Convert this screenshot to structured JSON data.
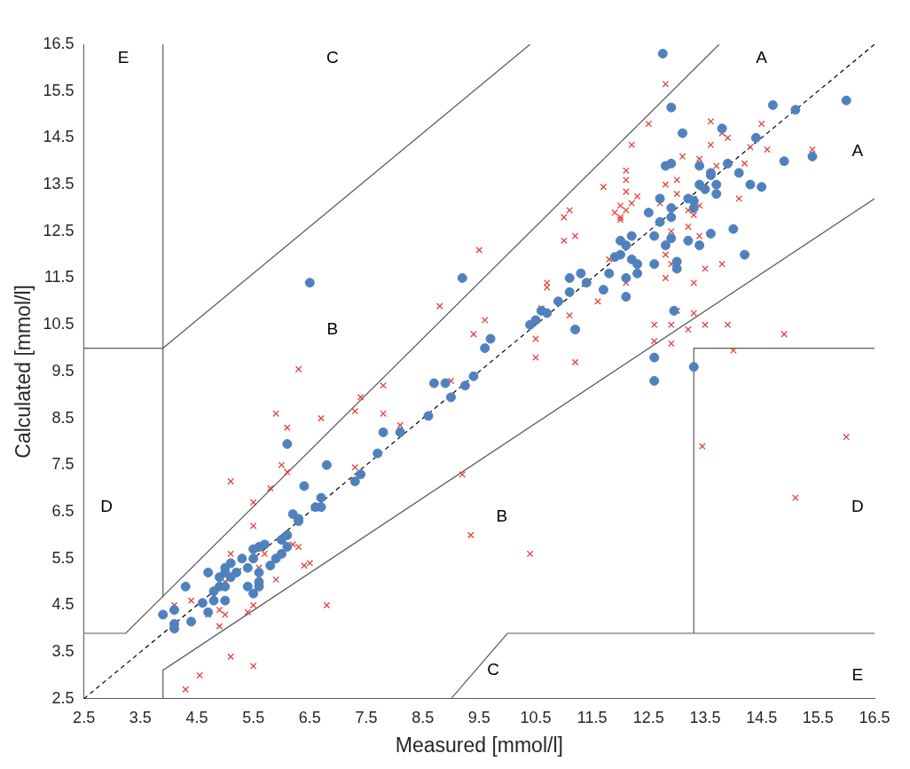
{
  "chart_data": {
    "type": "scatter",
    "x_label": "Measured [mmol/l]",
    "y_label": "Calculated [mmol/l]",
    "xlim": [
      2.5,
      16.5
    ],
    "ylim": [
      2.5,
      16.5
    ],
    "xticks": [
      2.5,
      3.5,
      4.5,
      5.5,
      6.5,
      7.5,
      8.5,
      9.5,
      10.5,
      11.5,
      12.5,
      13.5,
      14.5,
      15.5,
      16.5
    ],
    "yticks": [
      2.5,
      3.5,
      4.5,
      5.5,
      6.5,
      7.5,
      8.5,
      9.5,
      10.5,
      11.5,
      12.5,
      13.5,
      14.5,
      15.5,
      16.5
    ],
    "grid": false,
    "series": [
      {
        "color": "#4f81bd",
        "marker": "circle",
        "points": [
          [
            3.9,
            4.3
          ],
          [
            4.1,
            4.0
          ],
          [
            4.1,
            4.1
          ],
          [
            4.1,
            4.4
          ],
          [
            4.3,
            4.9
          ],
          [
            4.4,
            4.15
          ],
          [
            4.6,
            4.55
          ],
          [
            4.7,
            5.2
          ],
          [
            4.7,
            4.35
          ],
          [
            4.8,
            4.6
          ],
          [
            4.8,
            4.8
          ],
          [
            4.9,
            5.1
          ],
          [
            4.9,
            4.9
          ],
          [
            5.0,
            5.2
          ],
          [
            5.0,
            5.3
          ],
          [
            5.0,
            4.6
          ],
          [
            5.0,
            4.9
          ],
          [
            5.1,
            5.1
          ],
          [
            5.1,
            5.4
          ],
          [
            5.2,
            5.2
          ],
          [
            5.3,
            5.5
          ],
          [
            5.4,
            4.9
          ],
          [
            5.4,
            5.3
          ],
          [
            5.5,
            5.5
          ],
          [
            5.5,
            5.7
          ],
          [
            5.5,
            4.75
          ],
          [
            5.6,
            5.0
          ],
          [
            5.6,
            5.2
          ],
          [
            5.6,
            4.9
          ],
          [
            5.6,
            5.75
          ],
          [
            5.7,
            5.8
          ],
          [
            5.8,
            5.35
          ],
          [
            5.9,
            5.5
          ],
          [
            6.0,
            5.6
          ],
          [
            6.0,
            5.9
          ],
          [
            6.1,
            5.75
          ],
          [
            6.1,
            6.0
          ],
          [
            6.1,
            7.95
          ],
          [
            6.2,
            6.45
          ],
          [
            6.3,
            6.3
          ],
          [
            6.3,
            6.35
          ],
          [
            6.4,
            7.05
          ],
          [
            6.5,
            11.4
          ],
          [
            6.6,
            6.6
          ],
          [
            6.7,
            6.6
          ],
          [
            6.7,
            6.8
          ],
          [
            6.8,
            7.5
          ],
          [
            7.3,
            7.15
          ],
          [
            7.4,
            7.3
          ],
          [
            7.7,
            7.75
          ],
          [
            7.8,
            8.2
          ],
          [
            8.1,
            8.2
          ],
          [
            8.6,
            8.55
          ],
          [
            8.7,
            9.25
          ],
          [
            8.9,
            9.25
          ],
          [
            9.0,
            8.95
          ],
          [
            9.2,
            11.5
          ],
          [
            9.25,
            9.2
          ],
          [
            9.4,
            9.4
          ],
          [
            9.6,
            10.0
          ],
          [
            9.7,
            10.2
          ],
          [
            10.4,
            10.5
          ],
          [
            10.5,
            10.6
          ],
          [
            10.6,
            10.8
          ],
          [
            10.7,
            10.75
          ],
          [
            10.9,
            11.0
          ],
          [
            11.1,
            11.2
          ],
          [
            11.1,
            11.5
          ],
          [
            11.2,
            10.4
          ],
          [
            11.3,
            11.6
          ],
          [
            11.4,
            11.4
          ],
          [
            11.7,
            11.25
          ],
          [
            11.8,
            11.6
          ],
          [
            11.9,
            11.95
          ],
          [
            12.0,
            12.0
          ],
          [
            12.0,
            12.3
          ],
          [
            12.1,
            12.2
          ],
          [
            12.1,
            11.5
          ],
          [
            12.1,
            11.1
          ],
          [
            12.2,
            12.4
          ],
          [
            12.2,
            11.9
          ],
          [
            12.3,
            11.8
          ],
          [
            12.3,
            11.6
          ],
          [
            12.5,
            12.9
          ],
          [
            12.6,
            12.4
          ],
          [
            12.6,
            11.8
          ],
          [
            12.6,
            9.8
          ],
          [
            12.6,
            9.3
          ],
          [
            12.7,
            13.2
          ],
          [
            12.7,
            12.7
          ],
          [
            12.75,
            16.3
          ],
          [
            12.8,
            12.2
          ],
          [
            12.8,
            13.9
          ],
          [
            12.9,
            15.15
          ],
          [
            12.9,
            12.8
          ],
          [
            12.9,
            13.0
          ],
          [
            12.9,
            13.95
          ],
          [
            12.9,
            12.35
          ],
          [
            12.95,
            10.8
          ],
          [
            13.0,
            11.7
          ],
          [
            13.0,
            11.85
          ],
          [
            13.1,
            14.6
          ],
          [
            13.2,
            13.2
          ],
          [
            13.2,
            12.3
          ],
          [
            13.3,
            13.0
          ],
          [
            13.3,
            13.15
          ],
          [
            13.3,
            9.6
          ],
          [
            13.4,
            13.9
          ],
          [
            13.4,
            12.2
          ],
          [
            13.4,
            13.5
          ],
          [
            13.5,
            13.4
          ],
          [
            13.6,
            13.7
          ],
          [
            13.6,
            13.75
          ],
          [
            13.6,
            12.45
          ],
          [
            13.7,
            13.3
          ],
          [
            13.7,
            13.5
          ],
          [
            13.8,
            14.7
          ],
          [
            13.9,
            13.95
          ],
          [
            14.0,
            12.55
          ],
          [
            14.1,
            13.75
          ],
          [
            14.2,
            12.0
          ],
          [
            14.3,
            13.5
          ],
          [
            14.4,
            14.5
          ],
          [
            14.5,
            13.45
          ],
          [
            14.7,
            15.2
          ],
          [
            14.9,
            14.0
          ],
          [
            15.1,
            15.1
          ],
          [
            15.4,
            14.1
          ],
          [
            16.0,
            15.3
          ]
        ]
      },
      {
        "color": "#e8403a",
        "marker": "x",
        "points": [
          [
            3.9,
            4.3
          ],
          [
            4.1,
            4.4
          ],
          [
            4.1,
            4.5
          ],
          [
            4.3,
            2.7
          ],
          [
            4.4,
            4.6
          ],
          [
            4.55,
            3.0
          ],
          [
            4.7,
            4.3
          ],
          [
            4.8,
            4.7
          ],
          [
            4.9,
            4.4
          ],
          [
            4.9,
            4.05
          ],
          [
            5.0,
            5.0
          ],
          [
            5.0,
            4.3
          ],
          [
            5.1,
            7.15
          ],
          [
            5.1,
            3.4
          ],
          [
            5.1,
            5.6
          ],
          [
            5.3,
            5.5
          ],
          [
            5.4,
            4.35
          ],
          [
            5.5,
            4.5
          ],
          [
            5.5,
            6.7
          ],
          [
            5.5,
            6.2
          ],
          [
            5.5,
            3.2
          ],
          [
            5.6,
            5.1
          ],
          [
            5.6,
            5.3
          ],
          [
            5.7,
            5.6
          ],
          [
            5.8,
            7.0
          ],
          [
            5.9,
            5.05
          ],
          [
            5.9,
            8.6
          ],
          [
            6.0,
            7.5
          ],
          [
            6.1,
            8.3
          ],
          [
            6.1,
            7.35
          ],
          [
            6.1,
            6.0
          ],
          [
            6.2,
            5.8
          ],
          [
            6.3,
            9.55
          ],
          [
            6.3,
            5.75
          ],
          [
            6.4,
            5.35
          ],
          [
            6.5,
            5.4
          ],
          [
            6.7,
            8.5
          ],
          [
            6.7,
            6.7
          ],
          [
            6.8,
            4.5
          ],
          [
            7.3,
            7.45
          ],
          [
            7.3,
            8.65
          ],
          [
            7.4,
            8.95
          ],
          [
            7.8,
            8.6
          ],
          [
            7.8,
            9.2
          ],
          [
            8.1,
            8.35
          ],
          [
            8.8,
            10.9
          ],
          [
            9.0,
            9.3
          ],
          [
            9.2,
            7.3
          ],
          [
            9.35,
            6.0
          ],
          [
            9.4,
            10.3
          ],
          [
            9.5,
            12.1
          ],
          [
            9.6,
            10.6
          ],
          [
            10.4,
            5.6
          ],
          [
            10.5,
            9.8
          ],
          [
            10.5,
            10.2
          ],
          [
            10.6,
            10.85
          ],
          [
            10.7,
            11.3
          ],
          [
            10.7,
            11.4
          ],
          [
            11.0,
            12.3
          ],
          [
            11.0,
            12.8
          ],
          [
            11.1,
            12.95
          ],
          [
            11.1,
            10.7
          ],
          [
            11.2,
            12.4
          ],
          [
            11.2,
            9.7
          ],
          [
            11.6,
            11.0
          ],
          [
            11.7,
            13.45
          ],
          [
            11.8,
            11.9
          ],
          [
            11.9,
            12.9
          ],
          [
            12.0,
            13.05
          ],
          [
            12.0,
            12.8
          ],
          [
            12.0,
            12.75
          ],
          [
            12.1,
            13.8
          ],
          [
            12.1,
            13.6
          ],
          [
            12.1,
            13.35
          ],
          [
            12.1,
            12.95
          ],
          [
            12.1,
            11.4
          ],
          [
            12.2,
            14.35
          ],
          [
            12.2,
            13.1
          ],
          [
            12.3,
            13.25
          ],
          [
            12.5,
            14.8
          ],
          [
            12.6,
            10.15
          ],
          [
            12.6,
            10.5
          ],
          [
            12.7,
            13.1
          ],
          [
            12.8,
            15.65
          ],
          [
            12.8,
            11.5
          ],
          [
            12.8,
            12.0
          ],
          [
            12.8,
            13.5
          ],
          [
            12.9,
            10.1
          ],
          [
            12.9,
            10.5
          ],
          [
            12.9,
            11.8
          ],
          [
            12.9,
            12.5
          ],
          [
            13.0,
            10.8
          ],
          [
            13.0,
            13.3
          ],
          [
            13.0,
            13.6
          ],
          [
            13.1,
            14.1
          ],
          [
            13.2,
            12.6
          ],
          [
            13.2,
            12.95
          ],
          [
            13.2,
            10.4
          ],
          [
            13.3,
            13.2
          ],
          [
            13.3,
            11.4
          ],
          [
            13.3,
            12.85
          ],
          [
            13.3,
            10.75
          ],
          [
            13.4,
            14.05
          ],
          [
            13.4,
            13.05
          ],
          [
            13.4,
            12.4
          ],
          [
            13.45,
            7.9
          ],
          [
            13.5,
            10.5
          ],
          [
            13.5,
            11.7
          ],
          [
            13.6,
            14.85
          ],
          [
            13.6,
            14.35
          ],
          [
            13.7,
            13.9
          ],
          [
            13.8,
            11.8
          ],
          [
            13.8,
            14.6
          ],
          [
            13.9,
            14.5
          ],
          [
            13.9,
            10.5
          ],
          [
            14.0,
            9.95
          ],
          [
            14.1,
            13.2
          ],
          [
            14.2,
            13.95
          ],
          [
            14.3,
            14.3
          ],
          [
            14.5,
            14.8
          ],
          [
            14.6,
            14.25
          ],
          [
            14.9,
            10.3
          ],
          [
            15.1,
            6.8
          ],
          [
            15.4,
            14.25
          ],
          [
            16.0,
            8.1
          ]
        ]
      }
    ],
    "reference_lines": [
      {
        "color": "#000000",
        "line_style": "dashed",
        "points": [
          [
            2.5,
            2.5
          ],
          [
            16.5,
            16.5
          ]
        ]
      },
      {
        "color": "#595959",
        "line_style": "solid",
        "points": [
          [
            2.5,
            3.9
          ],
          [
            3.24,
            3.9
          ],
          [
            13.75,
            16.5
          ]
        ]
      },
      {
        "color": "#595959",
        "line_style": "solid",
        "points": [
          [
            3.9,
            2.5
          ],
          [
            3.9,
            3.11
          ],
          [
            16.5,
            13.2
          ]
        ]
      },
      {
        "color": "#595959",
        "line_style": "solid",
        "points": [
          [
            3.9,
            10.0
          ],
          [
            10.4,
            16.5
          ]
        ]
      },
      {
        "color": "#595959",
        "line_style": "solid",
        "points": [
          [
            3.9,
            4.67
          ],
          [
            3.9,
            16.5
          ]
        ]
      },
      {
        "color": "#595959",
        "line_style": "solid",
        "points": [
          [
            2.5,
            10.0
          ],
          [
            3.9,
            10.0
          ]
        ]
      },
      {
        "color": "#595959",
        "line_style": "solid",
        "points": [
          [
            13.3,
            3.9
          ],
          [
            13.3,
            10.0
          ],
          [
            16.5,
            10.0
          ]
        ]
      },
      {
        "color": "#595959",
        "line_style": "solid",
        "points": [
          [
            9.0,
            2.5
          ],
          [
            10.0,
            3.9
          ],
          [
            16.5,
            3.9
          ]
        ]
      }
    ],
    "annotations": [
      {
        "text": "E",
        "x": 3.2,
        "y": 16.2
      },
      {
        "text": "C",
        "x": 6.9,
        "y": 16.2
      },
      {
        "text": "A",
        "x": 14.5,
        "y": 16.2
      },
      {
        "text": "A",
        "x": 16.2,
        "y": 14.2
      },
      {
        "text": "B",
        "x": 6.9,
        "y": 10.4
      },
      {
        "text": "D",
        "x": 2.9,
        "y": 6.6
      },
      {
        "text": "B",
        "x": 9.9,
        "y": 6.4
      },
      {
        "text": "D",
        "x": 16.2,
        "y": 6.6
      },
      {
        "text": "C",
        "x": 9.75,
        "y": 3.1
      },
      {
        "text": "E",
        "x": 16.2,
        "y": 3.0
      }
    ]
  }
}
